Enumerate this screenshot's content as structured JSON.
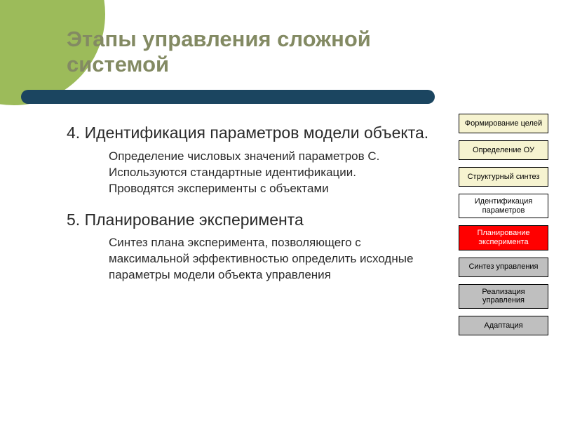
{
  "title": "Этапы управления сложной системой",
  "circle_color": "#9cbb5a",
  "divider_color": "#1b4560",
  "title_color": "#838a63",
  "content": {
    "item4": {
      "number": "4.",
      "heading": "Идентификация параметров модели объекта.",
      "body": "Определение числовых значений параметров С. Используются стандартные идентификации. Проводятся эксперименты с объектами"
    },
    "item5": {
      "number": "5.",
      "heading": "Планирование эксперимента",
      "body": "Синтез плана эксперимента, позволяющего с максимальной эффективностью определить исходные параметры модели объекта управления"
    }
  },
  "sidebar": {
    "items": [
      {
        "label": "Формирование целей",
        "bg": "#f6f3d0",
        "fg": "#000000"
      },
      {
        "label": "Определение ОУ",
        "bg": "#f6f3d0",
        "fg": "#000000"
      },
      {
        "label": "Структурный синтез",
        "bg": "#f6f3d0",
        "fg": "#000000"
      },
      {
        "label": "Идентификация параметров",
        "bg": "#ffffff",
        "fg": "#000000"
      },
      {
        "label": "Планирование эксперимента",
        "bg": "#ff0000",
        "fg": "#ffffff"
      },
      {
        "label": "Синтез управления",
        "bg": "#bfbfbf",
        "fg": "#000000"
      },
      {
        "label": "Реализация управления",
        "bg": "#bfbfbf",
        "fg": "#000000"
      },
      {
        "label": "Адаптация",
        "bg": "#bfbfbf",
        "fg": "#000000"
      }
    ]
  }
}
